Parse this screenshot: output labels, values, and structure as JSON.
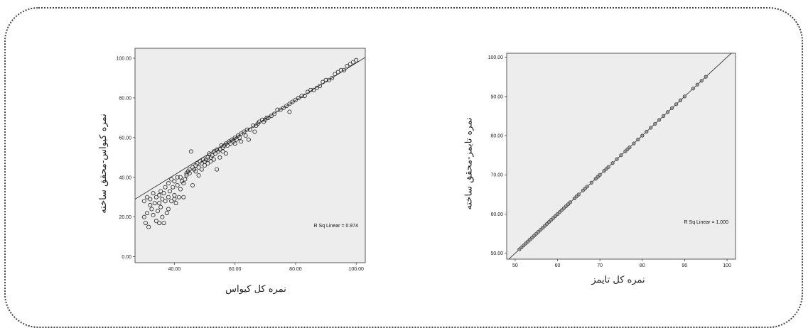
{
  "chart_data": [
    {
      "type": "scatter",
      "xlabel": "نمره کل کیواس",
      "ylabel": "نمره کیواس-محقق ساخته",
      "xlim": [
        27,
        103
      ],
      "ylim": [
        -3,
        105
      ],
      "xticks": [
        "40.00",
        "60.00",
        "80.00",
        "100.00"
      ],
      "yticks": [
        "0.00",
        "20.00",
        "40.00",
        "60.00",
        "80.00",
        "100.00"
      ],
      "grid": false,
      "fit_line": {
        "slope": 0.94,
        "intercept": 3.6
      },
      "annotation": "R Sq Linear = 0.974",
      "points": [
        [
          30,
          20
        ],
        [
          30,
          28
        ],
        [
          30.5,
          17
        ],
        [
          31,
          30
        ],
        [
          31,
          22
        ],
        [
          31.5,
          15
        ],
        [
          32,
          26
        ],
        [
          32,
          29
        ],
        [
          32.5,
          24
        ],
        [
          33,
          32
        ],
        [
          33,
          21
        ],
        [
          33.5,
          27
        ],
        [
          34,
          30
        ],
        [
          34,
          18
        ],
        [
          34.5,
          23
        ],
        [
          35,
          31
        ],
        [
          35,
          27
        ],
        [
          35,
          17
        ],
        [
          35.5,
          25
        ],
        [
          35.5,
          33
        ],
        [
          36,
          20
        ],
        [
          36,
          29
        ],
        [
          36.5,
          32
        ],
        [
          36.5,
          17
        ],
        [
          37,
          28
        ],
        [
          37,
          35
        ],
        [
          37.5,
          22
        ],
        [
          38,
          30
        ],
        [
          38,
          37
        ],
        [
          38,
          24
        ],
        [
          38.5,
          33
        ],
        [
          39,
          39
        ],
        [
          39,
          28
        ],
        [
          39.5,
          35
        ],
        [
          40,
          31
        ],
        [
          40,
          38
        ],
        [
          40,
          29
        ],
        [
          40.5,
          27
        ],
        [
          41,
          36
        ],
        [
          41,
          40
        ],
        [
          41.5,
          30
        ],
        [
          42,
          34
        ],
        [
          42,
          40
        ],
        [
          42.5,
          38
        ],
        [
          43,
          37
        ],
        [
          43,
          30
        ],
        [
          43.5,
          39
        ],
        [
          44,
          42
        ],
        [
          44,
          41
        ],
        [
          44.5,
          43
        ],
        [
          45,
          44
        ],
        [
          45,
          42
        ],
        [
          45.5,
          53
        ],
        [
          46,
          45
        ],
        [
          46,
          36
        ],
        [
          46.5,
          44
        ],
        [
          47,
          46
        ],
        [
          47,
          43
        ],
        [
          47.5,
          47
        ],
        [
          48,
          45
        ],
        [
          48,
          41
        ],
        [
          48.5,
          48
        ],
        [
          49,
          47
        ],
        [
          49,
          44
        ],
        [
          49.5,
          49
        ],
        [
          50,
          48
        ],
        [
          50,
          46
        ],
        [
          50.5,
          49
        ],
        [
          51,
          50
        ],
        [
          51,
          47
        ],
        [
          51.5,
          52
        ],
        [
          52,
          50
        ],
        [
          52,
          48
        ],
        [
          52.5,
          51
        ],
        [
          53,
          53
        ],
        [
          53,
          49
        ],
        [
          53.5,
          52
        ],
        [
          54,
          54
        ],
        [
          54,
          44
        ],
        [
          54.5,
          53
        ],
        [
          55,
          54
        ],
        [
          55,
          50
        ],
        [
          55.5,
          56
        ],
        [
          56,
          55
        ],
        [
          56,
          53
        ],
        [
          56.5,
          56
        ],
        [
          57,
          57
        ],
        [
          57,
          52
        ],
        [
          57.5,
          56
        ],
        [
          58,
          58
        ],
        [
          58.5,
          57
        ],
        [
          59,
          59
        ],
        [
          59.5,
          58
        ],
        [
          60,
          60
        ],
        [
          60,
          57
        ],
        [
          60.5,
          59
        ],
        [
          61,
          61
        ],
        [
          61.5,
          60
        ],
        [
          62,
          62
        ],
        [
          62,
          58
        ],
        [
          63,
          63
        ],
        [
          63.5,
          61
        ],
        [
          64,
          64
        ],
        [
          64.5,
          59
        ],
        [
          65,
          64
        ],
        [
          66,
          66
        ],
        [
          66.5,
          63
        ],
        [
          67,
          66
        ],
        [
          67.5,
          67
        ],
        [
          68,
          68
        ],
        [
          69,
          69
        ],
        [
          69.5,
          68
        ],
        [
          70,
          69
        ],
        [
          70.5,
          70
        ],
        [
          71,
          70
        ],
        [
          72,
          71
        ],
        [
          73,
          72
        ],
        [
          74,
          74
        ],
        [
          75,
          74
        ],
        [
          76,
          75
        ],
        [
          77,
          76
        ],
        [
          78,
          77
        ],
        [
          78,
          73
        ],
        [
          79,
          78
        ],
        [
          80,
          79
        ],
        [
          81,
          80
        ],
        [
          82,
          81
        ],
        [
          83,
          81
        ],
        [
          84,
          83
        ],
        [
          85,
          84
        ],
        [
          86,
          84
        ],
        [
          87,
          85
        ],
        [
          88,
          86
        ],
        [
          89,
          88
        ],
        [
          90,
          89
        ],
        [
          91,
          89
        ],
        [
          92,
          90
        ],
        [
          93,
          92
        ],
        [
          94,
          93
        ],
        [
          95,
          94
        ],
        [
          96,
          94
        ],
        [
          97,
          96
        ],
        [
          98,
          97
        ],
        [
          99,
          98
        ],
        [
          100,
          99
        ]
      ]
    },
    {
      "type": "scatter",
      "xlabel": "نمره کل تایمز",
      "ylabel": "نمره تایمز-محقق ساخته",
      "xlim": [
        48,
        102
      ],
      "ylim": [
        48.5,
        101
      ],
      "xticks": [
        "50",
        "60",
        "70",
        "80",
        "90",
        "100"
      ],
      "yticks": [
        "50.00",
        "60.00",
        "70.00",
        "80.00",
        "90.00",
        "100.00"
      ],
      "grid": false,
      "fit_line": {
        "slope": 1.0,
        "intercept": 0.0
      },
      "annotation": "R Sq Linear = 1.000",
      "points": [
        [
          51,
          51
        ],
        [
          51.5,
          51.5
        ],
        [
          52,
          52
        ],
        [
          52.5,
          52.5
        ],
        [
          53,
          53
        ],
        [
          53.5,
          53.5
        ],
        [
          54,
          54
        ],
        [
          54.5,
          54.5
        ],
        [
          55,
          55
        ],
        [
          55.5,
          55.5
        ],
        [
          56,
          56
        ],
        [
          56.5,
          56.5
        ],
        [
          57,
          57
        ],
        [
          57.5,
          57.5
        ],
        [
          58,
          58
        ],
        [
          58.5,
          58.5
        ],
        [
          59,
          59
        ],
        [
          59.5,
          59.5
        ],
        [
          60,
          60
        ],
        [
          60.5,
          60.5
        ],
        [
          61,
          61
        ],
        [
          61.5,
          61.5
        ],
        [
          62,
          62
        ],
        [
          62.5,
          62.5
        ],
        [
          63,
          63
        ],
        [
          64,
          64
        ],
        [
          64.5,
          64.5
        ],
        [
          65,
          65
        ],
        [
          66,
          66
        ],
        [
          66.5,
          66.5
        ],
        [
          67,
          67
        ],
        [
          68,
          68
        ],
        [
          69,
          69
        ],
        [
          69.5,
          69.5
        ],
        [
          70,
          70
        ],
        [
          71,
          71
        ],
        [
          71.5,
          71.5
        ],
        [
          72,
          72
        ],
        [
          73,
          73
        ],
        [
          74,
          74
        ],
        [
          75,
          75
        ],
        [
          76,
          76
        ],
        [
          76.5,
          76.5
        ],
        [
          77,
          77
        ],
        [
          78,
          78
        ],
        [
          79,
          79
        ],
        [
          80,
          80
        ],
        [
          81,
          81
        ],
        [
          82,
          82
        ],
        [
          83,
          83
        ],
        [
          84,
          84
        ],
        [
          85,
          85
        ],
        [
          86,
          86
        ],
        [
          87,
          87
        ],
        [
          88,
          88
        ],
        [
          89,
          89
        ],
        [
          90,
          90
        ],
        [
          92,
          92
        ],
        [
          93,
          93
        ],
        [
          94,
          94
        ],
        [
          95,
          95
        ]
      ]
    }
  ]
}
